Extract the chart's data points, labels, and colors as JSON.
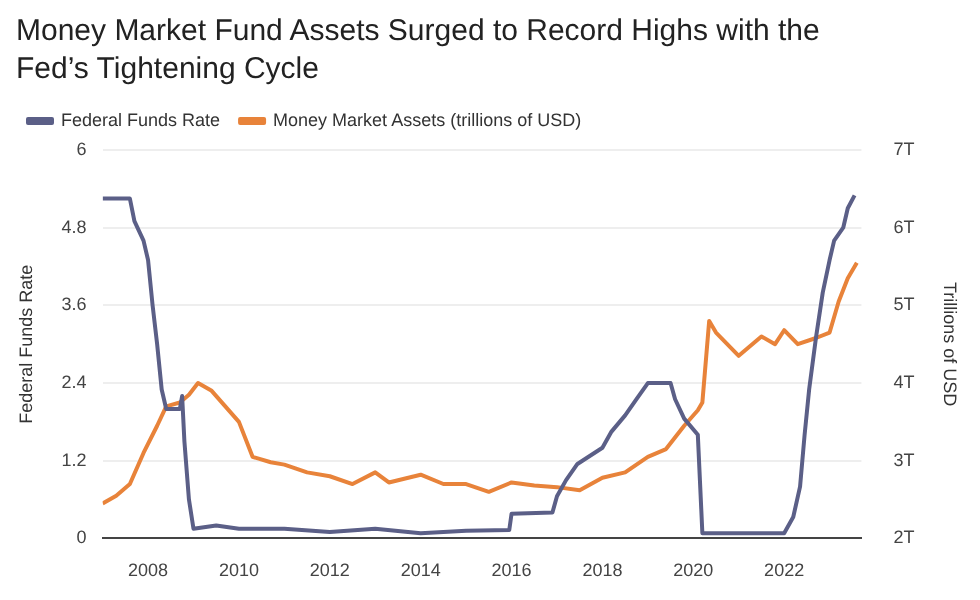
{
  "chart_data": {
    "type": "line",
    "title": "Money Market Fund Assets Surged to Record Highs with the Fed’s Tightening Cycle",
    "ylabel": "Federal Funds Rate",
    "y2label": "Trillions of USD",
    "xlim": [
      2007,
      2023.7
    ],
    "xticks": [
      2008,
      2010,
      2012,
      2014,
      2016,
      2018,
      2020,
      2022
    ],
    "ylim": [
      0,
      6
    ],
    "yticks": [
      0,
      1.2,
      2.4,
      3.6,
      4.8,
      6
    ],
    "y2lim": [
      2,
      7
    ],
    "y2ticks": [
      {
        "value": 2,
        "label": "2T"
      },
      {
        "value": 3,
        "label": "3T"
      },
      {
        "value": 4,
        "label": "4T"
      },
      {
        "value": 5,
        "label": "5T"
      },
      {
        "value": 6,
        "label": "6T"
      },
      {
        "value": 7,
        "label": "7T"
      }
    ],
    "grid": "y",
    "legend": "top left",
    "marker": "none",
    "line_style": "solid",
    "series": [
      {
        "name": "Federal Funds Rate",
        "color": "#5b5f87",
        "x": [
          2007.0,
          2007.6,
          2007.7,
          2007.9,
          2008.0,
          2008.1,
          2008.2,
          2008.3,
          2008.4,
          2008.7,
          2008.75,
          2008.8,
          2008.9,
          2009.0,
          2009.5,
          2010,
          2011,
          2012,
          2013,
          2014,
          2015,
          2015.95,
          2016.0,
          2016.9,
          2017.0,
          2017.2,
          2017.45,
          2018.0,
          2018.2,
          2018.5,
          2018.75,
          2019.0,
          2019.5,
          2019.6,
          2019.8,
          2020.1,
          2020.2,
          2021,
          2022.0,
          2022.2,
          2022.35,
          2022.45,
          2022.55,
          2022.7,
          2022.85,
          2023.0,
          2023.1,
          2023.3,
          2023.4,
          2023.55
        ],
        "values": [
          5.25,
          5.25,
          4.9,
          4.6,
          4.3,
          3.6,
          3.0,
          2.3,
          2.0,
          2.0,
          2.2,
          1.5,
          0.6,
          0.15,
          0.2,
          0.15,
          0.15,
          0.1,
          0.15,
          0.08,
          0.12,
          0.13,
          0.38,
          0.4,
          0.65,
          0.9,
          1.15,
          1.4,
          1.65,
          1.9,
          2.15,
          2.4,
          2.4,
          2.15,
          1.85,
          1.6,
          0.08,
          0.08,
          0.08,
          0.33,
          0.8,
          1.6,
          2.3,
          3.1,
          3.8,
          4.3,
          4.6,
          4.8,
          5.1,
          5.3
        ]
      },
      {
        "name": "Money Market Assets (trillions of USD)",
        "color": "#e8833a",
        "axis": "y2",
        "x": [
          2007.0,
          2007.3,
          2007.6,
          2007.9,
          2008.2,
          2008.4,
          2008.7,
          2008.9,
          2009.1,
          2009.4,
          2009.7,
          2010.0,
          2010.3,
          2010.7,
          2011,
          2011.5,
          2012,
          2012.5,
          2013,
          2013.3,
          2014,
          2014.5,
          2015.0,
          2015.5,
          2016,
          2016.5,
          2017,
          2017.5,
          2018,
          2018.5,
          2019,
          2019.4,
          2019.8,
          2020.1,
          2020.2,
          2020.35,
          2020.5,
          2021.0,
          2021.5,
          2021.8,
          2022.0,
          2022.3,
          2022.7,
          2023.0,
          2023.2,
          2023.4,
          2023.6
        ],
        "values": [
          2.45,
          2.55,
          2.7,
          3.1,
          3.45,
          3.7,
          3.75,
          3.85,
          4.0,
          3.9,
          3.7,
          3.5,
          3.05,
          2.98,
          2.95,
          2.85,
          2.8,
          2.7,
          2.85,
          2.72,
          2.82,
          2.7,
          2.7,
          2.6,
          2.72,
          2.68,
          2.66,
          2.62,
          2.78,
          2.85,
          3.05,
          3.15,
          3.45,
          3.65,
          3.75,
          4.8,
          4.65,
          4.35,
          4.6,
          4.5,
          4.68,
          4.5,
          4.58,
          4.65,
          5.05,
          5.35,
          5.55
        ]
      }
    ]
  }
}
